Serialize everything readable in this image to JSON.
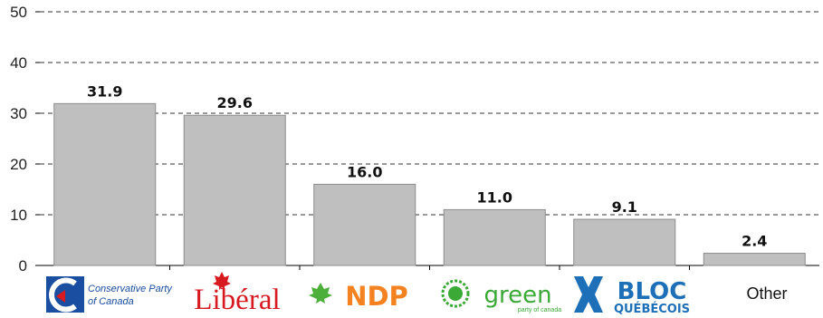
{
  "chart_data": {
    "type": "bar",
    "categories": [
      "Conservative Party of Canada",
      "Libéral",
      "NDP",
      "green party of canada",
      "BLOC QUÉBÉCOIS",
      "Other"
    ],
    "values": [
      31.9,
      29.6,
      16.0,
      11.0,
      9.1,
      2.4
    ],
    "value_labels": [
      "31.9",
      "29.6",
      "16.0",
      "11.0",
      "9.1",
      "2.4"
    ],
    "ylim": [
      0,
      50
    ],
    "yticks": [
      "0",
      "10",
      "20",
      "30",
      "40",
      "50"
    ],
    "grid": "dashed horizontal",
    "bar_color": "#bfbfbf",
    "bar_stroke": "#8c8c8c",
    "title": "",
    "xlabel": "",
    "ylabel": ""
  },
  "logos": {
    "conservative": {
      "line1": "Conservative Party",
      "line2": "of Canada",
      "color": "#1a4ea0"
    },
    "liberal": {
      "text": "Libéral",
      "color": "#d71920"
    },
    "ndp": {
      "text": "NDP",
      "color": "#f58220",
      "leaf_color": "#4caf3a"
    },
    "green": {
      "text": "green",
      "sub": "party of canada",
      "color": "#3aa935"
    },
    "bloc": {
      "line1": "BLOC",
      "line2": "QUÉBÉCOIS",
      "color": "#1d6fb8"
    },
    "other": {
      "text": "Other"
    }
  }
}
